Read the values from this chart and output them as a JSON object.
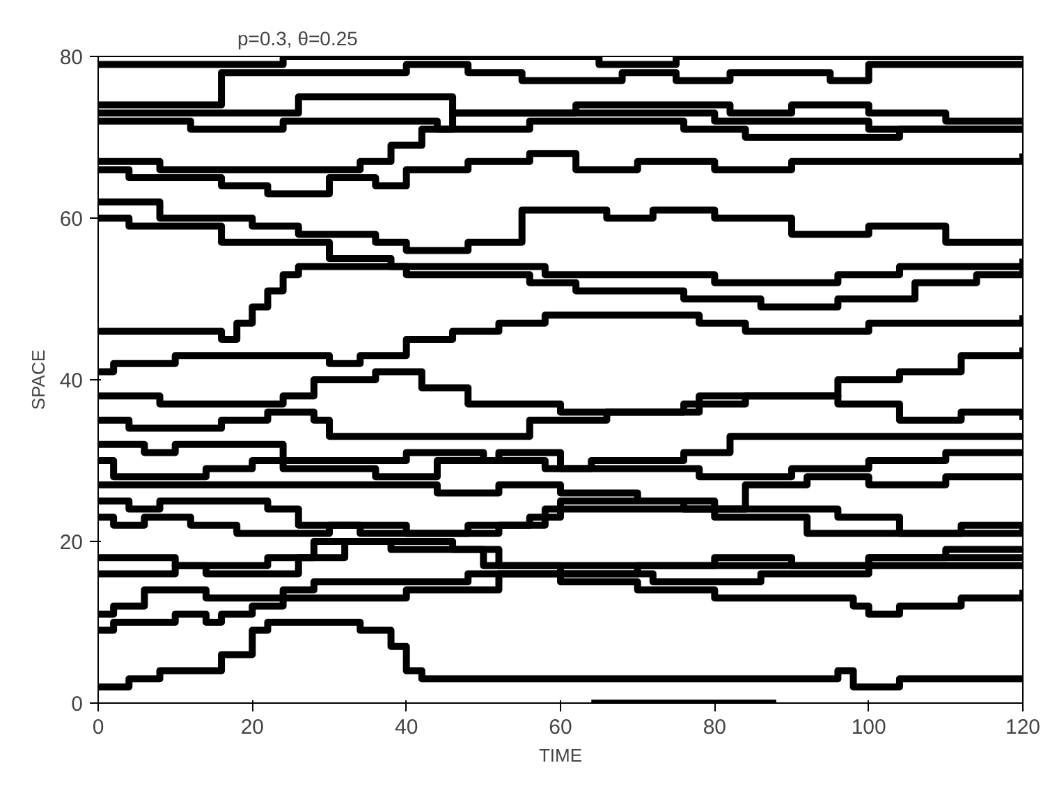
{
  "chart_data": {
    "type": "step",
    "title": "p=0.3,    θ=0.25",
    "xlabel": "TIME",
    "ylabel": "SPACE",
    "xlim": [
      0,
      120
    ],
    "ylim": [
      0,
      80
    ],
    "xticks": [
      0,
      20,
      40,
      60,
      80,
      100,
      120
    ],
    "yticks": [
      0,
      20,
      40,
      60,
      80
    ],
    "grid": false,
    "line_style": "solid",
    "series": [
      {
        "color": "#000000",
        "x": [
          0,
          20,
          24,
          60,
          65,
          75,
          120
        ],
        "values": [
          79,
          79,
          80,
          80,
          79,
          80,
          80
        ]
      },
      {
        "color": "#000000",
        "x": [
          0,
          10,
          16,
          32,
          40,
          48,
          55,
          62,
          68,
          75,
          82,
          95,
          100,
          120
        ],
        "values": [
          74,
          74,
          78,
          78,
          79,
          78,
          77,
          77,
          78,
          77,
          78,
          77,
          79,
          79
        ]
      },
      {
        "color": "#000000",
        "x": [
          0,
          22,
          26,
          32,
          42,
          46,
          58,
          62,
          75,
          82,
          90,
          100,
          110,
          120
        ],
        "values": [
          73,
          73,
          75,
          75,
          75,
          73,
          73,
          74,
          74,
          73,
          74,
          73,
          72,
          72
        ]
      },
      {
        "color": "#000000",
        "x": [
          0,
          8,
          12,
          20,
          24,
          38,
          44,
          52,
          56,
          70,
          76,
          84,
          100,
          104,
          120
        ],
        "values": [
          72,
          72,
          71,
          71,
          72,
          72,
          71,
          71,
          72,
          72,
          71,
          70,
          70,
          71,
          71
        ]
      },
      {
        "color": "#000000",
        "x": [
          0,
          8,
          20,
          30,
          34,
          38,
          42,
          46,
          60,
          75,
          80,
          95,
          100,
          120
        ],
        "values": [
          67,
          66,
          66,
          66,
          67,
          69,
          71,
          73,
          73,
          73,
          72,
          72,
          71,
          71
        ]
      },
      {
        "color": "#000000",
        "x": [
          0,
          4,
          10,
          16,
          22,
          30,
          36,
          40,
          48,
          56,
          62,
          70,
          80,
          90,
          100,
          110,
          120
        ],
        "values": [
          66,
          65,
          65,
          64,
          63,
          65,
          64,
          66,
          67,
          68,
          66,
          67,
          66,
          67,
          67,
          67,
          68
        ]
      },
      {
        "color": "#000000",
        "x": [
          0,
          6,
          8,
          14,
          20,
          26,
          36,
          40,
          48,
          55,
          62,
          66,
          72,
          80,
          90,
          100,
          110,
          120
        ],
        "values": [
          62,
          62,
          60,
          60,
          59,
          58,
          57,
          56,
          57,
          61,
          61,
          60,
          61,
          60,
          58,
          59,
          57,
          57
        ]
      },
      {
        "color": "#000000",
        "x": [
          0,
          4,
          12,
          16,
          30,
          38,
          54,
          58,
          70,
          80,
          88,
          96,
          104,
          120
        ],
        "values": [
          60,
          59,
          59,
          57,
          55,
          54,
          54,
          53,
          53,
          52,
          52,
          53,
          54,
          55
        ]
      },
      {
        "color": "#000000",
        "x": [
          0,
          10,
          16,
          18,
          20,
          22,
          24,
          26,
          36,
          40,
          48,
          56,
          62,
          70,
          76,
          86,
          96,
          106,
          114,
          120
        ],
        "values": [
          46,
          46,
          45,
          47,
          49,
          51,
          53,
          54,
          54,
          53,
          53,
          52,
          51,
          51,
          50,
          49,
          50,
          52,
          53,
          54
        ]
      },
      {
        "color": "#000000",
        "x": [
          0,
          2,
          10,
          26,
          30,
          34,
          40,
          46,
          52,
          58,
          72,
          78,
          84,
          90,
          100,
          110,
          120
        ],
        "values": [
          41,
          42,
          43,
          43,
          42,
          43,
          45,
          46,
          47,
          48,
          48,
          47,
          46,
          46,
          47,
          47,
          48
        ]
      },
      {
        "color": "#000000",
        "x": [
          0,
          4,
          8,
          20,
          24,
          28,
          36,
          42,
          48,
          60,
          72,
          78,
          88,
          96,
          104,
          112,
          120
        ],
        "values": [
          38,
          38,
          37,
          37,
          38,
          40,
          41,
          39,
          37,
          36,
          36,
          38,
          38,
          40,
          41,
          43,
          44
        ]
      },
      {
        "color": "#000000",
        "x": [
          0,
          4,
          10,
          16,
          22,
          28,
          30,
          40,
          48,
          56,
          66,
          76,
          84,
          96,
          104,
          112,
          120
        ],
        "values": [
          35,
          34,
          34,
          35,
          36,
          35,
          33,
          33,
          33,
          35,
          36,
          37,
          38,
          37,
          35,
          36,
          35
        ]
      },
      {
        "color": "#000000",
        "x": [
          0,
          6,
          10,
          18,
          24,
          32,
          40,
          50,
          58,
          64,
          76,
          82,
          90,
          100,
          110,
          120
        ],
        "values": [
          32,
          31,
          32,
          32,
          30,
          30,
          31,
          30,
          29,
          30,
          31,
          33,
          33,
          33,
          33,
          33
        ]
      },
      {
        "color": "#000000",
        "x": [
          0,
          2,
          8,
          14,
          20,
          24,
          36,
          44,
          52,
          60,
          70,
          78,
          90,
          100,
          110,
          120
        ],
        "values": [
          30,
          28,
          28,
          29,
          30,
          29,
          28,
          30,
          31,
          29,
          29,
          28,
          29,
          30,
          31,
          31
        ]
      },
      {
        "color": "#000000",
        "x": [
          0,
          10,
          20,
          28,
          36,
          44,
          52,
          60,
          70,
          76,
          84,
          92,
          100,
          110,
          120
        ],
        "values": [
          27,
          27,
          27,
          27,
          27,
          26,
          27,
          26,
          25,
          24,
          27,
          28,
          27,
          28,
          28
        ]
      },
      {
        "color": "#000000",
        "x": [
          0,
          4,
          8,
          16,
          22,
          26,
          34,
          46,
          52,
          58,
          66,
          76,
          86,
          96,
          104,
          112,
          120
        ],
        "values": [
          25,
          24,
          25,
          25,
          24,
          22,
          21,
          21,
          22,
          24,
          24,
          24,
          24,
          23,
          21,
          22,
          22
        ]
      },
      {
        "color": "#000000",
        "x": [
          0,
          2,
          6,
          12,
          18,
          26,
          30,
          40,
          48,
          56,
          60,
          72,
          80,
          92,
          102,
          110,
          120
        ],
        "values": [
          23,
          22,
          23,
          22,
          21,
          21,
          22,
          21,
          22,
          23,
          25,
          25,
          23,
          21,
          21,
          21,
          22
        ]
      },
      {
        "color": "#000000",
        "x": [
          0,
          6,
          10,
          16,
          22,
          28,
          38,
          46,
          52,
          62,
          72,
          80,
          90,
          100,
          110,
          120
        ],
        "values": [
          18,
          18,
          17,
          17,
          18,
          20,
          20,
          19,
          17,
          17,
          17,
          18,
          17,
          18,
          18,
          18
        ]
      },
      {
        "color": "#000000",
        "x": [
          0,
          6,
          10,
          14,
          20,
          26,
          32,
          38,
          50,
          60,
          72,
          80,
          86,
          94,
          100,
          110,
          120
        ],
        "values": [
          16,
          16,
          17,
          16,
          16,
          18,
          20,
          19,
          17,
          16,
          15,
          15,
          16,
          16,
          18,
          19,
          19
        ]
      },
      {
        "color": "#000000",
        "x": [
          0,
          2,
          6,
          10,
          14,
          20,
          30,
          40,
          52,
          60,
          70,
          80,
          90,
          98,
          100,
          104,
          112,
          120
        ],
        "values": [
          11,
          12,
          14,
          14,
          13,
          13,
          13,
          14,
          16,
          15,
          14,
          13,
          13,
          12,
          11,
          12,
          13,
          14
        ]
      },
      {
        "color": "#000000",
        "x": [
          0,
          2,
          6,
          10,
          14,
          16,
          20,
          24,
          28,
          40,
          48,
          56,
          70,
          80,
          90,
          100,
          110,
          120
        ],
        "values": [
          9,
          10,
          10,
          11,
          10,
          11,
          12,
          14,
          15,
          15,
          16,
          16,
          17,
          17,
          17,
          17,
          17,
          17
        ]
      },
      {
        "color": "#000000",
        "x": [
          0,
          4,
          8,
          12,
          16,
          20,
          22,
          26,
          34,
          38,
          40,
          42,
          50,
          58,
          66,
          76,
          86,
          96,
          98,
          104,
          120
        ],
        "values": [
          2,
          3,
          4,
          4,
          6,
          9,
          10,
          10,
          9,
          7,
          4,
          3,
          3,
          3,
          3,
          3,
          3,
          4,
          2,
          3,
          3
        ]
      },
      {
        "color": "#000000",
        "x": [
          64,
          70,
          76,
          88
        ],
        "values": [
          0,
          0,
          0,
          0
        ]
      }
    ]
  }
}
